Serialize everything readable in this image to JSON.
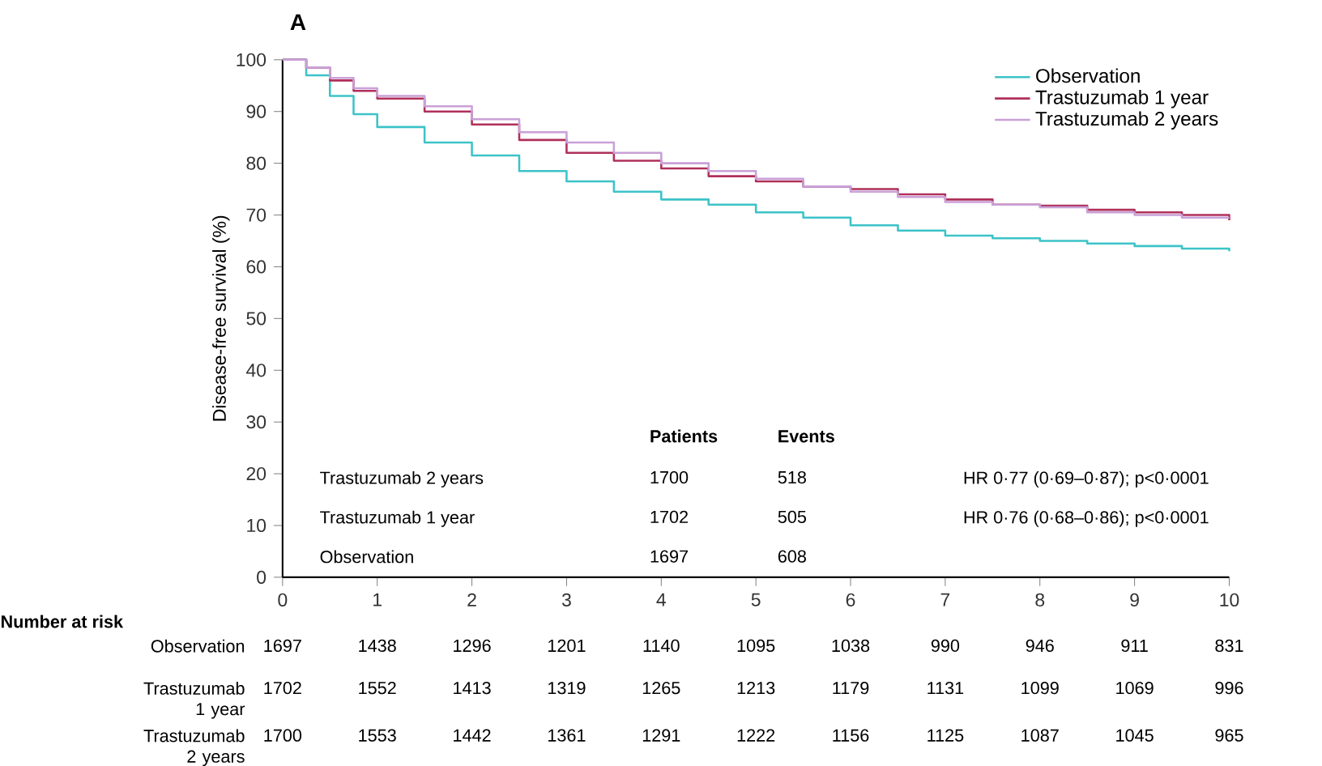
{
  "chart_data": {
    "type": "step",
    "title": "A",
    "ylabel": "Disease-free survival (%)",
    "x": [
      0,
      0.25,
      0.5,
      0.75,
      1,
      1.5,
      2,
      2.5,
      3,
      3.5,
      4,
      4.5,
      5,
      5.5,
      6,
      6.5,
      7,
      7.5,
      8,
      8.5,
      9,
      9.5,
      10
    ],
    "series": [
      {
        "name": "Observation",
        "color": "#3cc3c8",
        "values": [
          100,
          97,
          93,
          89.5,
          87,
          84,
          81.5,
          78.5,
          76.5,
          74.5,
          73,
          72,
          70.5,
          69.5,
          68,
          67,
          66,
          65.5,
          65,
          64.5,
          64,
          63.5,
          63
        ]
      },
      {
        "name": "Trastuzumab 1 year",
        "color": "#b0305a",
        "values": [
          100,
          98.5,
          96,
          94,
          92.5,
          90,
          87.5,
          84.5,
          82,
          80.5,
          79,
          77.5,
          76.5,
          75.5,
          75,
          74,
          73,
          72,
          71.8,
          71,
          70.5,
          70,
          69
        ]
      },
      {
        "name": "Trastuzumab 2 years",
        "color": "#c9a0d8",
        "values": [
          100,
          98.5,
          96.5,
          94.5,
          93,
          91,
          88.5,
          86,
          84,
          82,
          80,
          78.5,
          77,
          75.5,
          74.5,
          73.5,
          72.5,
          72,
          71.5,
          70.5,
          70,
          69.5,
          69.5
        ]
      }
    ],
    "xlim": [
      0,
      10
    ],
    "ylim": [
      0,
      100
    ],
    "xticks": [
      0,
      1,
      2,
      3,
      4,
      5,
      6,
      7,
      8,
      9,
      10
    ],
    "yticks": [
      0,
      10,
      20,
      30,
      40,
      50,
      60,
      70,
      80,
      90,
      100
    ],
    "legend": "top right",
    "marker": "none",
    "line_style": "solid",
    "grid": false,
    "annotations": [
      "Patients",
      "Events",
      "Trastuzumab 2 years",
      "1700",
      "518",
      "HR 0·77 (0·69–0·87); p<0·0001",
      "Trastuzumab 1 year",
      "1702",
      "505",
      "HR 0·76 (0·68–0·86); p<0·0001",
      "Observation",
      "1697",
      "608",
      "Number at risk",
      "Observation",
      "1697",
      "1438",
      "1296",
      "1201",
      "1140",
      "1095",
      "1038",
      "990",
      "946",
      "911",
      "831",
      "Trastuzumab 1 year",
      "1702",
      "1552",
      "1413",
      "1319",
      "1265",
      "1213",
      "1179",
      "1131",
      "1099",
      "1069",
      "996",
      "Trastuzumab 2 years",
      "1700",
      "1553",
      "1442",
      "1361",
      "1291",
      "1222",
      "1156",
      "1125",
      "1087",
      "1045",
      "965"
    ]
  }
}
